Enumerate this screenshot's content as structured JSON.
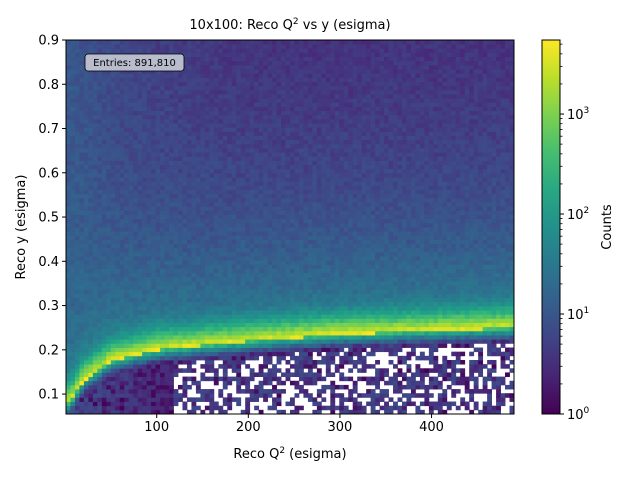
{
  "chart_data": {
    "type": "heatmap",
    "title": "10x100: Reco Q² vs y (esigma)",
    "title_main": "10x100: Reco Q",
    "title_sup": "2",
    "title_rest": " vs y (esigma)",
    "xlabel": "Reco Q² (esigma)",
    "xlabel_main": "Reco Q",
    "xlabel_sup": "2",
    "xlabel_rest": " (esigma)",
    "ylabel": "Reco y (esigma)",
    "xlim": [
      1,
      490
    ],
    "ylim": [
      0.055,
      0.9
    ],
    "x_ticks": [
      {
        "value": 100,
        "label": "100"
      },
      {
        "value": 200,
        "label": "200"
      },
      {
        "value": 300,
        "label": "300"
      },
      {
        "value": 400,
        "label": "400"
      }
    ],
    "y_ticks": [
      {
        "value": 0.1,
        "label": "0.1"
      },
      {
        "value": 0.2,
        "label": "0.2"
      },
      {
        "value": 0.3,
        "label": "0.3"
      },
      {
        "value": 0.4,
        "label": "0.4"
      },
      {
        "value": 0.5,
        "label": "0.5"
      },
      {
        "value": 0.6,
        "label": "0.6"
      },
      {
        "value": 0.7,
        "label": "0.7"
      },
      {
        "value": 0.8,
        "label": "0.8"
      },
      {
        "value": 0.9,
        "label": "0.9"
      }
    ],
    "colorbar": {
      "label": "Counts",
      "scale": "log",
      "range": [
        1,
        5500
      ],
      "colormap": "viridis",
      "ticks": [
        {
          "value": 1,
          "base": "10",
          "exp": "0"
        },
        {
          "value": 10,
          "base": "10",
          "exp": "1"
        },
        {
          "value": 100,
          "base": "10",
          "exp": "2"
        },
        {
          "value": 1000,
          "base": "10",
          "exp": "3"
        }
      ]
    },
    "entries_label": "Entries: 891,810",
    "ridge": {
      "description_points": [
        [
          5,
          0.08
        ],
        [
          20,
          0.13
        ],
        [
          50,
          0.175
        ],
        [
          100,
          0.2
        ],
        [
          200,
          0.22
        ],
        [
          300,
          0.235
        ],
        [
          490,
          0.25
        ]
      ],
      "peak_counts": 5000
    },
    "grid": false,
    "legend": "none"
  }
}
